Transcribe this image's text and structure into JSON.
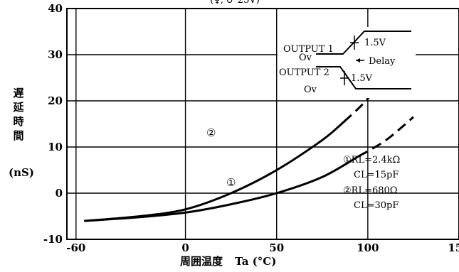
{
  "chart_data": {
    "type": "line",
    "title_top": "(♀, ♂ 25V)",
    "ylabel_chars": [
      "遅",
      "延",
      "時",
      "間"
    ],
    "yunit": "(nS)",
    "xlabel_jp": "周囲温度",
    "xlabel": "Ta (°C)",
    "xlim": [
      -65,
      150
    ],
    "ylim": [
      -10,
      40
    ],
    "xticks": [
      "-60",
      "0",
      "50",
      "100",
      "150"
    ],
    "yticks": [
      "40",
      "30",
      "20",
      "10",
      "0",
      "-10"
    ],
    "grid": true,
    "series": [
      {
        "name": "①",
        "solid": [
          [
            -55,
            -6
          ],
          [
            -25,
            -5.2
          ],
          [
            0,
            -4.2
          ],
          [
            25,
            -2.4
          ],
          [
            50,
            0
          ],
          [
            75,
            3.5
          ],
          [
            95,
            8
          ]
        ],
        "dashed": [
          [
            95,
            8
          ],
          [
            110,
            11.5
          ],
          [
            125,
            16.5
          ]
        ]
      },
      {
        "name": "②",
        "solid": [
          [
            -55,
            -6
          ],
          [
            -25,
            -5
          ],
          [
            0,
            -3.5
          ],
          [
            25,
            0
          ],
          [
            50,
            5
          ],
          [
            75,
            11.5
          ],
          [
            87,
            15.5
          ]
        ],
        "dashed": [
          [
            87,
            15.5
          ],
          [
            100,
            20.5
          ],
          [
            125,
            32.5
          ]
        ]
      }
    ],
    "legend": {
      "line1a": "①RL=2.4kΩ",
      "line1b": "CL=15pF",
      "line2a": "②RL=680Ω",
      "line2b": "CL=30pF"
    },
    "inset": {
      "output1": "OUTPUT 1",
      "output2": "OUTPUT 2",
      "ov1": "Ov",
      "ov2": "Ov",
      "v1": "1.5V",
      "v2": "1.5V",
      "delay": "Delay"
    }
  }
}
